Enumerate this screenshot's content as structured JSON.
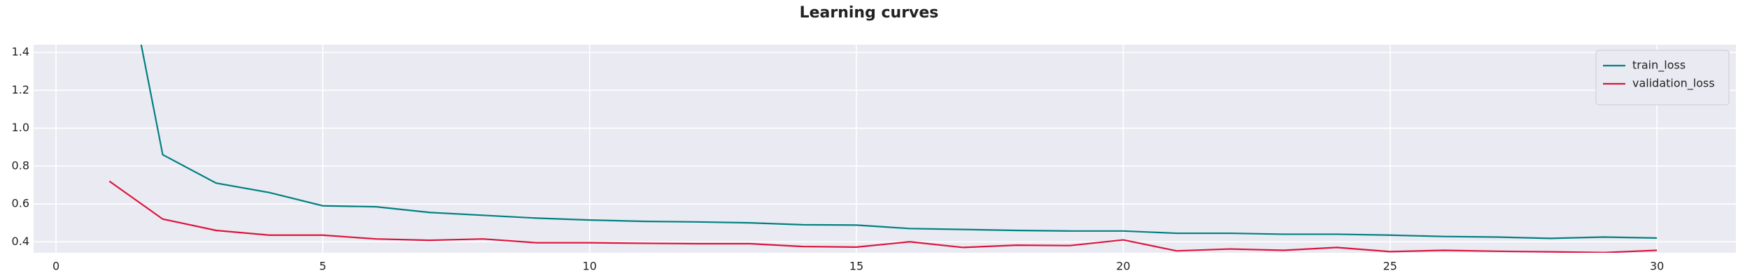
{
  "chart_data": {
    "type": "line",
    "title": "Learning curves",
    "x": [
      1,
      2,
      3,
      4,
      5,
      6,
      7,
      8,
      9,
      10,
      11,
      12,
      13,
      14,
      15,
      16,
      17,
      18,
      19,
      20,
      21,
      22,
      23,
      24,
      25,
      26,
      27,
      28,
      29,
      30
    ],
    "series": [
      {
        "name": "train_loss",
        "color": "#008080",
        "values": [
          2.3,
          0.86,
          0.71,
          0.66,
          0.59,
          0.585,
          0.555,
          0.54,
          0.525,
          0.515,
          0.508,
          0.505,
          0.5,
          0.49,
          0.488,
          0.47,
          0.465,
          0.46,
          0.457,
          0.457,
          0.445,
          0.445,
          0.44,
          0.44,
          0.435,
          0.428,
          0.425,
          0.418,
          0.425,
          0.42
        ]
      },
      {
        "name": "validation_loss",
        "color": "#dc143c",
        "values": [
          0.72,
          0.52,
          0.46,
          0.435,
          0.435,
          0.415,
          0.408,
          0.415,
          0.395,
          0.395,
          0.392,
          0.39,
          0.39,
          0.375,
          0.372,
          0.4,
          0.37,
          0.382,
          0.38,
          0.41,
          0.352,
          0.362,
          0.355,
          0.37,
          0.348,
          0.355,
          0.35,
          0.347,
          0.343,
          0.355
        ]
      }
    ],
    "xlim": [
      -0.42,
      31.48
    ],
    "ylim": [
      0.342,
      1.441
    ],
    "xticks": [
      0,
      5,
      10,
      15,
      20,
      25,
      30
    ],
    "yticks": [
      {
        "value": 0.4,
        "label": "0.4"
      },
      {
        "value": 0.6,
        "label": "0.6"
      },
      {
        "value": 0.8,
        "label": "0.8"
      },
      {
        "value": 1.0,
        "label": "1.0"
      },
      {
        "value": 1.2,
        "label": "1.2"
      },
      {
        "value": 1.4,
        "label": "1.4"
      }
    ],
    "grid": true,
    "legend": "upper right"
  }
}
